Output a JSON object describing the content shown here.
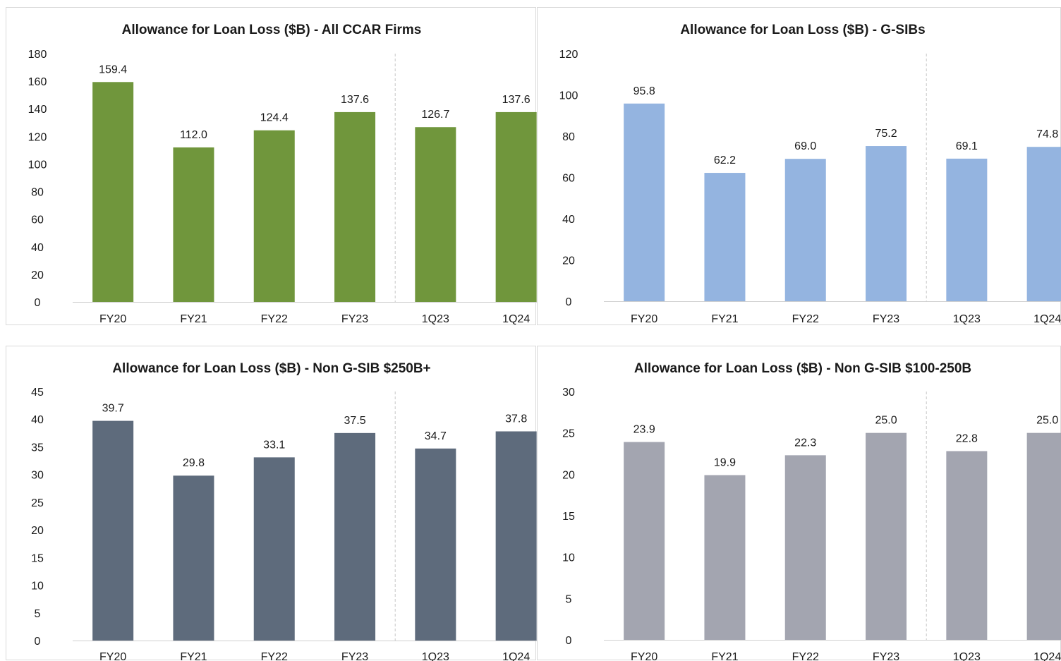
{
  "chart_data": [
    {
      "type": "bar",
      "title": "Allowance for Loan Loss ($B) - All CCAR Firms",
      "categories": [
        "FY20",
        "FY21",
        "FY22",
        "FY23",
        "1Q23",
        "1Q24"
      ],
      "values": [
        159.4,
        112.0,
        124.4,
        137.6,
        126.7,
        137.6
      ],
      "data_labels": [
        "159.4",
        "112.0",
        "124.4",
        "137.6",
        "126.7",
        "137.6"
      ],
      "ylim": [
        0,
        180
      ],
      "yticks": [
        0,
        20,
        40,
        60,
        80,
        100,
        120,
        140,
        160,
        180
      ],
      "color": "#70963c",
      "grid": false
    },
    {
      "type": "bar",
      "title": "Allowance for Loan Loss ($B) - G-SIBs",
      "categories": [
        "FY20",
        "FY21",
        "FY22",
        "FY23",
        "1Q23",
        "1Q24"
      ],
      "values": [
        95.8,
        62.2,
        69.0,
        75.2,
        69.1,
        74.8
      ],
      "data_labels": [
        "95.8",
        "62.2",
        "69.0",
        "75.2",
        "69.1",
        "74.8"
      ],
      "ylim": [
        0,
        120
      ],
      "yticks": [
        0,
        20,
        40,
        60,
        80,
        100,
        120
      ],
      "color": "#94b4e0",
      "grid": false
    },
    {
      "type": "bar",
      "title": "Allowance for Loan Loss ($B) - Non G-SIB $250B+",
      "categories": [
        "FY20",
        "FY21",
        "FY22",
        "FY23",
        "1Q23",
        "1Q24"
      ],
      "values": [
        39.7,
        29.8,
        33.1,
        37.5,
        34.7,
        37.8
      ],
      "data_labels": [
        "39.7",
        "29.8",
        "33.1",
        "37.5",
        "34.7",
        "37.8"
      ],
      "ylim": [
        0,
        45
      ],
      "yticks": [
        0,
        5,
        10,
        15,
        20,
        25,
        30,
        35,
        40,
        45
      ],
      "color": "#5e6b7c",
      "grid": false
    },
    {
      "type": "bar",
      "title": "Allowance for Loan Loss ($B) - Non G-SIB $100-250B",
      "categories": [
        "FY20",
        "FY21",
        "FY22",
        "FY23",
        "1Q23",
        "1Q24"
      ],
      "values": [
        23.9,
        19.9,
        22.3,
        25.0,
        22.8,
        25.0
      ],
      "data_labels": [
        "23.9",
        "19.9",
        "22.3",
        "25.0",
        "22.8",
        "25.0"
      ],
      "ylim": [
        0,
        30
      ],
      "yticks": [
        0,
        5,
        10,
        15,
        20,
        25,
        30
      ],
      "color": "#a3a5b0",
      "grid": false
    }
  ]
}
